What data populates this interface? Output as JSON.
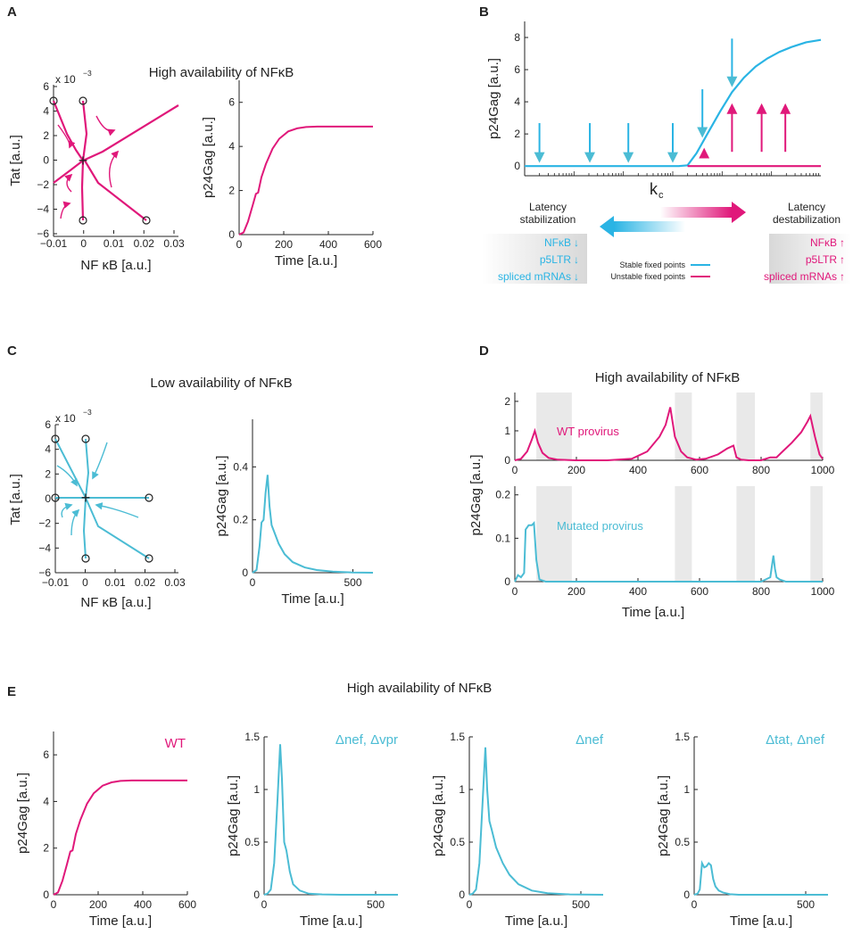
{
  "colors": {
    "magenta": "#e0187a",
    "cyan": "#2ab4e4",
    "teal": "#4bbcd4",
    "axis": "#222222",
    "shade": "#e9e9e9"
  },
  "panel_labels": {
    "A": "A",
    "B": "B",
    "C": "C",
    "D": "D",
    "E": "E"
  },
  "panel_A": {
    "title": "High availability of NFκB",
    "exponent": "x 10",
    "exponent_power": "−3",
    "phase_xlabel": "NF κB [a.u.]",
    "phase_ylabel": "Tat [a.u.]",
    "time_xlabel": "Time [a.u.]",
    "time_ylabel": "p24Gag [a.u.]",
    "phase_xticks": [
      "−0.01",
      "0",
      "0.01",
      "0.02",
      "0.03"
    ],
    "phase_yticks": [
      "6",
      "4",
      "2",
      "0",
      "−2",
      "−4",
      "−6"
    ],
    "time_xticks": [
      "0",
      "200",
      "400",
      "600"
    ],
    "time_yticks": [
      "0",
      "2",
      "4",
      "6"
    ]
  },
  "panel_B": {
    "ylabel": "p24Gag [a.u.]",
    "xlabel": "k",
    "xlabel_sub": "c",
    "yticks": [
      "0",
      "2",
      "4",
      "6",
      "8"
    ],
    "left_title": [
      "Latency",
      "stabilization"
    ],
    "right_title": [
      "Latency",
      "destabilization"
    ],
    "left_list": [
      "NFκB",
      "p5LTR",
      "spliced mRNAs"
    ],
    "right_list": [
      "NFκB",
      "p5LTR",
      "spliced mRNAs"
    ],
    "legend": [
      "Stable fixed points",
      "Unstable fixed points"
    ],
    "arrow_down": "↓",
    "arrow_up": "↑"
  },
  "panel_C": {
    "title": "Low availability of NFκB",
    "exponent": "x 10",
    "exponent_power": "−3",
    "phase_xlabel": "NF κB [a.u.]",
    "phase_ylabel": "Tat [a.u.]",
    "time_xlabel": "Time [a.u.]",
    "time_ylabel": "p24Gag [a.u.]",
    "phase_xticks": [
      "−0.01",
      "0",
      "0.01",
      "0.02",
      "0.03"
    ],
    "phase_yticks": [
      "6",
      "4",
      "2",
      "0",
      "−2",
      "−4",
      "−6"
    ],
    "time_xticks": [
      "0",
      "500"
    ],
    "time_yticks": [
      "0",
      "0.2",
      "0.4"
    ]
  },
  "panel_D": {
    "title": "High availability of NFκB",
    "ylabel": "p24Gag [a.u.]",
    "xlabel": "Time [a.u.]",
    "top_label": "WT provirus",
    "bottom_label": "Mutated provirus",
    "top_yticks": [
      "0",
      "1",
      "2"
    ],
    "bottom_yticks": [
      "0",
      "0.1",
      "0.2"
    ],
    "xticks": [
      "0",
      "200",
      "400",
      "600",
      "800",
      "1000"
    ]
  },
  "panel_E": {
    "title": "High availability of NFκB",
    "subplots": [
      {
        "label": "WT",
        "ylabel": "p24Gag [a.u.]",
        "xlabel": "Time [a.u.]",
        "yticks": [
          "0",
          "2",
          "4",
          "6"
        ],
        "xticks": [
          "0",
          "200",
          "400",
          "600"
        ]
      },
      {
        "label": "Δnef, Δvpr",
        "ylabel": "p24Gag [a.u.]",
        "xlabel": "Time [a.u.]",
        "yticks": [
          "0",
          "0.5",
          "1",
          "1.5"
        ],
        "xticks": [
          "0",
          "500"
        ]
      },
      {
        "label": "Δnef",
        "ylabel": "p24Gag [a.u.]",
        "xlabel": "Time [a.u.]",
        "yticks": [
          "0",
          "0.5",
          "1",
          "1.5"
        ],
        "xticks": [
          "0",
          "500"
        ]
      },
      {
        "label": "Δtat, Δnef",
        "ylabel": "p24Gag [a.u.]",
        "xlabel": "Time [a.u.]",
        "yticks": [
          "0",
          "0.5",
          "1",
          "1.5"
        ],
        "xticks": [
          "0",
          "500"
        ]
      }
    ]
  },
  "chart_data": [
    {
      "id": "A2",
      "type": "line",
      "title": "High availability of NFκB",
      "xlabel": "Time [a.u.]",
      "ylabel": "p24Gag [a.u.]",
      "xlim": [
        0,
        600
      ],
      "ylim": [
        0,
        7
      ],
      "series": [
        {
          "name": "WT",
          "color": "magenta",
          "x": [
            0,
            20,
            40,
            60,
            75,
            85,
            100,
            120,
            150,
            180,
            220,
            260,
            300,
            350,
            400,
            500,
            600
          ],
          "y": [
            0,
            0.1,
            0.6,
            1.3,
            1.85,
            1.9,
            2.6,
            3.2,
            3.9,
            4.35,
            4.68,
            4.82,
            4.88,
            4.9,
            4.9,
            4.9,
            4.9
          ]
        }
      ]
    },
    {
      "id": "B",
      "type": "line",
      "xlabel": "k_c",
      "ylabel": "p24Gag [a.u.]",
      "xlim": [
        0,
        1
      ],
      "ylim": [
        -0.6,
        9
      ],
      "series": [
        {
          "name": "Stable fixed points",
          "color": "cyan",
          "x": [
            0,
            0.52,
            0.55,
            0.58,
            0.62,
            0.66,
            0.7,
            0.74,
            0.78,
            0.82,
            0.86,
            0.9,
            0.95,
            1.0
          ],
          "y": [
            0,
            0,
            0.05,
            0.8,
            2.1,
            3.4,
            4.6,
            5.5,
            6.2,
            6.7,
            7.1,
            7.4,
            7.7,
            7.85
          ]
        },
        {
          "name": "Unstable fixed points",
          "color": "magenta",
          "x": [
            0.55,
            1.0
          ],
          "y": [
            0,
            0
          ]
        }
      ],
      "down_arrows_x": [
        0.05,
        0.22,
        0.35,
        0.5,
        0.6,
        0.7
      ],
      "up_arrows_x": [
        0.6,
        0.7,
        0.8,
        0.88
      ]
    },
    {
      "id": "C2",
      "type": "line",
      "title": "Low availability of NFκB",
      "xlabel": "Time [a.u.]",
      "ylabel": "p24Gag [a.u.]",
      "xlim": [
        0,
        600
      ],
      "ylim": [
        0,
        0.58
      ],
      "series": [
        {
          "name": "mutated",
          "color": "teal",
          "x": [
            0,
            20,
            35,
            45,
            55,
            65,
            75,
            85,
            95,
            110,
            130,
            160,
            200,
            260,
            320,
            400,
            500,
            600
          ],
          "y": [
            0,
            0.01,
            0.1,
            0.19,
            0.2,
            0.3,
            0.37,
            0.25,
            0.18,
            0.15,
            0.11,
            0.07,
            0.04,
            0.02,
            0.01,
            0.004,
            0.001,
            0
          ]
        }
      ]
    },
    {
      "id": "D-top",
      "type": "line",
      "title": "WT provirus",
      "xlabel": "Time [a.u.]",
      "ylabel": "p24Gag [a.u.]",
      "xlim": [
        0,
        1000
      ],
      "ylim": [
        0,
        2.3
      ],
      "series": [
        {
          "name": "WT provirus",
          "color": "magenta",
          "x": [
            0,
            20,
            40,
            55,
            65,
            75,
            90,
            110,
            140,
            200,
            300,
            380,
            430,
            470,
            490,
            505,
            520,
            540,
            560,
            590,
            620,
            660,
            690,
            710,
            720,
            735,
            760,
            800,
            830,
            850,
            870,
            900,
            930,
            950,
            960,
            975,
            990,
            1000
          ],
          "y": [
            0,
            0.05,
            0.3,
            0.7,
            1.0,
            0.6,
            0.25,
            0.08,
            0.02,
            0,
            0,
            0.05,
            0.3,
            0.8,
            1.2,
            1.8,
            0.8,
            0.3,
            0.1,
            0.02,
            0.05,
            0.2,
            0.4,
            0.5,
            0.1,
            0.02,
            0,
            0,
            0.1,
            0.1,
            0.3,
            0.6,
            0.95,
            1.3,
            1.5,
            0.8,
            0.2,
            0.05
          ]
        }
      ],
      "shaded_x": [
        [
          70,
          185
        ],
        [
          520,
          575
        ],
        [
          720,
          780
        ],
        [
          960,
          1000
        ]
      ]
    },
    {
      "id": "D-bottom",
      "type": "line",
      "title": "Mutated provirus",
      "xlabel": "Time [a.u.]",
      "ylabel": "p24Gag [a.u.]",
      "xlim": [
        0,
        1000
      ],
      "ylim": [
        0,
        0.22
      ],
      "series": [
        {
          "name": "Mutated provirus",
          "color": "teal",
          "x": [
            0,
            10,
            20,
            30,
            35,
            45,
            55,
            62,
            70,
            80,
            100,
            200,
            400,
            600,
            800,
            830,
            840,
            845,
            850,
            860,
            880,
            1000
          ],
          "y": [
            0,
            0.015,
            0.01,
            0.02,
            0.12,
            0.13,
            0.13,
            0.135,
            0.05,
            0.005,
            0,
            0,
            0,
            0,
            0,
            0.01,
            0.06,
            0.03,
            0.01,
            0.005,
            0,
            0
          ]
        }
      ],
      "shaded_x": [
        [
          70,
          185
        ],
        [
          520,
          575
        ],
        [
          720,
          780
        ],
        [
          960,
          1000
        ]
      ]
    },
    {
      "id": "E1",
      "type": "line",
      "title": "WT",
      "xlabel": "Time [a.u.]",
      "ylabel": "p24Gag [a.u.]",
      "xlim": [
        0,
        600
      ],
      "ylim": [
        0,
        7
      ],
      "series": [
        {
          "name": "WT",
          "color": "magenta",
          "x": [
            0,
            20,
            40,
            60,
            75,
            85,
            100,
            120,
            150,
            180,
            220,
            260,
            300,
            350,
            400,
            500,
            600
          ],
          "y": [
            0,
            0.1,
            0.6,
            1.3,
            1.85,
            1.9,
            2.6,
            3.2,
            3.9,
            4.35,
            4.68,
            4.82,
            4.88,
            4.9,
            4.9,
            4.9,
            4.9
          ]
        }
      ]
    },
    {
      "id": "E2",
      "type": "line",
      "title": "Δnef, Δvpr",
      "xlabel": "Time [a.u.]",
      "ylabel": "p24Gag [a.u.]",
      "xlim": [
        0,
        600
      ],
      "ylim": [
        0,
        1.5
      ],
      "series": [
        {
          "name": "Δnef, Δvpr",
          "color": "teal",
          "x": [
            0,
            15,
            30,
            45,
            60,
            72,
            80,
            90,
            100,
            115,
            130,
            160,
            200,
            260,
            350,
            600
          ],
          "y": [
            0,
            0.01,
            0.05,
            0.3,
            0.9,
            1.43,
            1.1,
            0.5,
            0.42,
            0.22,
            0.1,
            0.04,
            0.01,
            0.003,
            0,
            0
          ]
        }
      ]
    },
    {
      "id": "E3",
      "type": "line",
      "title": "Δnef",
      "xlabel": "Time [a.u.]",
      "ylabel": "p24Gag [a.u.]",
      "xlim": [
        0,
        600
      ],
      "ylim": [
        0,
        1.5
      ],
      "series": [
        {
          "name": "Δnef",
          "color": "teal",
          "x": [
            0,
            15,
            30,
            45,
            60,
            72,
            80,
            90,
            100,
            120,
            150,
            180,
            220,
            280,
            350,
            450,
            600
          ],
          "y": [
            0,
            0.01,
            0.05,
            0.3,
            0.9,
            1.4,
            1.0,
            0.7,
            0.62,
            0.45,
            0.3,
            0.19,
            0.1,
            0.04,
            0.015,
            0.003,
            0
          ]
        }
      ]
    },
    {
      "id": "E4",
      "type": "line",
      "title": "Δtat, Δnef",
      "xlabel": "Time [a.u.]",
      "ylabel": "p24Gag [a.u.]",
      "xlim": [
        0,
        600
      ],
      "ylim": [
        0,
        1.5
      ],
      "series": [
        {
          "name": "Δtat, Δnef",
          "color": "teal",
          "x": [
            0,
            15,
            25,
            35,
            45,
            55,
            65,
            75,
            85,
            95,
            110,
            130,
            160,
            200,
            600
          ],
          "y": [
            0,
            0.01,
            0.05,
            0.3,
            0.26,
            0.27,
            0.3,
            0.28,
            0.15,
            0.08,
            0.04,
            0.02,
            0.005,
            0,
            0
          ]
        }
      ]
    }
  ]
}
